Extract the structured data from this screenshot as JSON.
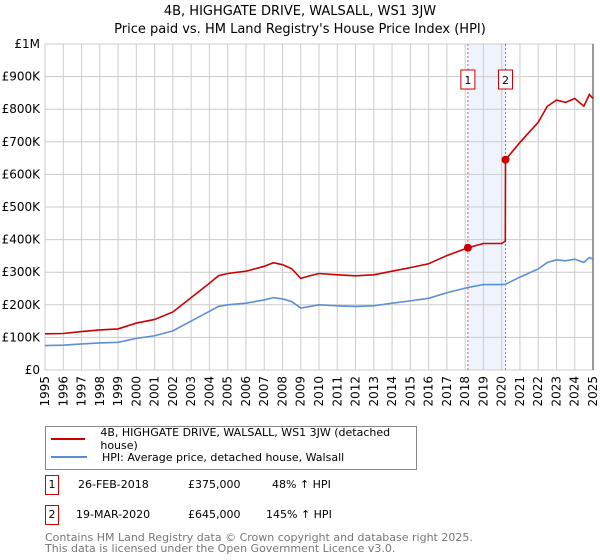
{
  "chart_data": {
    "type": "line",
    "title": "4B, HIGHGATE DRIVE, WALSALL, WS1 3JW",
    "subtitle": "Price paid vs. HM Land Registry's House Price Index (HPI)",
    "xlim": [
      1995,
      2025
    ],
    "ylim": [
      0,
      1000000
    ],
    "grid": true,
    "y_ticks": [
      {
        "v": 0,
        "label": "£0"
      },
      {
        "v": 100000,
        "label": "£100K"
      },
      {
        "v": 200000,
        "label": "£200K"
      },
      {
        "v": 300000,
        "label": "£300K"
      },
      {
        "v": 400000,
        "label": "£400K"
      },
      {
        "v": 500000,
        "label": "£500K"
      },
      {
        "v": 600000,
        "label": "£600K"
      },
      {
        "v": 700000,
        "label": "£700K"
      },
      {
        "v": 800000,
        "label": "£800K"
      },
      {
        "v": 900000,
        "label": "£900K"
      },
      {
        "v": 1000000,
        "label": "£1M"
      }
    ],
    "x_ticks": [
      "1995",
      "1996",
      "1997",
      "1998",
      "1999",
      "2000",
      "2001",
      "2002",
      "2003",
      "2004",
      "2005",
      "2006",
      "2007",
      "2008",
      "2009",
      "2010",
      "2011",
      "2012",
      "2013",
      "2014",
      "2015",
      "2016",
      "2017",
      "2018",
      "2019",
      "2020",
      "2021",
      "2022",
      "2023",
      "2024",
      "2025"
    ],
    "series": [
      {
        "name": "4B, HIGHGATE DRIVE, WALSALL, WS1 3JW (detached house)",
        "color": "#cc0000",
        "x": [
          1995,
          1996,
          1997,
          1998,
          1999,
          2000,
          2001,
          2002,
          2003,
          2004,
          2004.5,
          2005,
          2006,
          2007,
          2007.5,
          2008,
          2008.5,
          2009,
          2009.5,
          2010,
          2011,
          2012,
          2013,
          2014,
          2015,
          2016,
          2017,
          2018.15,
          2019,
          2020,
          2020.2,
          2020.21,
          2021,
          2022,
          2022.5,
          2023,
          2023.5,
          2024,
          2024.5,
          2024.8,
          2025
        ],
        "y": [
          111000,
          112000,
          118000,
          123000,
          126000,
          144000,
          155000,
          178000,
          222000,
          266000,
          289000,
          296000,
          303000,
          318000,
          329000,
          323000,
          311000,
          281000,
          289000,
          296000,
          292000,
          289000,
          292000,
          303000,
          314000,
          326000,
          351000,
          375000,
          388000,
          388000,
          395000,
          645000,
          698000,
          760000,
          809000,
          828000,
          821000,
          833000,
          809000,
          845000,
          833000
        ]
      },
      {
        "name": "HPI: Average price, detached house, Walsall",
        "color": "#5b8fd4",
        "x": [
          1995,
          1996,
          1997,
          1998,
          1999,
          2000,
          2001,
          2002,
          2003,
          2004,
          2004.5,
          2005,
          2006,
          2007,
          2007.5,
          2008,
          2008.5,
          2009,
          2009.5,
          2010,
          2011,
          2012,
          2013,
          2014,
          2015,
          2016,
          2017,
          2018.15,
          2019,
          2020,
          2020.21,
          2021,
          2022,
          2022.5,
          2023,
          2023.5,
          2024,
          2024.5,
          2024.8,
          2025
        ],
        "y": [
          75000,
          76000,
          80000,
          83000,
          85000,
          97000,
          105000,
          120000,
          150000,
          180000,
          195000,
          200000,
          205000,
          215000,
          222000,
          218000,
          210000,
          190000,
          195000,
          200000,
          197000,
          195000,
          197000,
          205000,
          212000,
          220000,
          237000,
          253000,
          262000,
          262000,
          263000,
          285000,
          310000,
          330000,
          338000,
          335000,
          340000,
          330000,
          345000,
          340000
        ]
      }
    ],
    "sales": [
      {
        "id": "1",
        "x": 2018.15,
        "y": 375000,
        "date": "26-FEB-2018",
        "price": "£375,000",
        "hpi": "48% ↑ HPI"
      },
      {
        "id": "2",
        "x": 2020.21,
        "y": 645000,
        "date": "19-MAR-2020",
        "price": "£645,000",
        "hpi": "145% ↑ HPI"
      }
    ],
    "footer": [
      "Contains HM Land Registry data © Crown copyright and database right 2025.",
      "This data is licensed under the Open Government Licence v3.0."
    ]
  }
}
